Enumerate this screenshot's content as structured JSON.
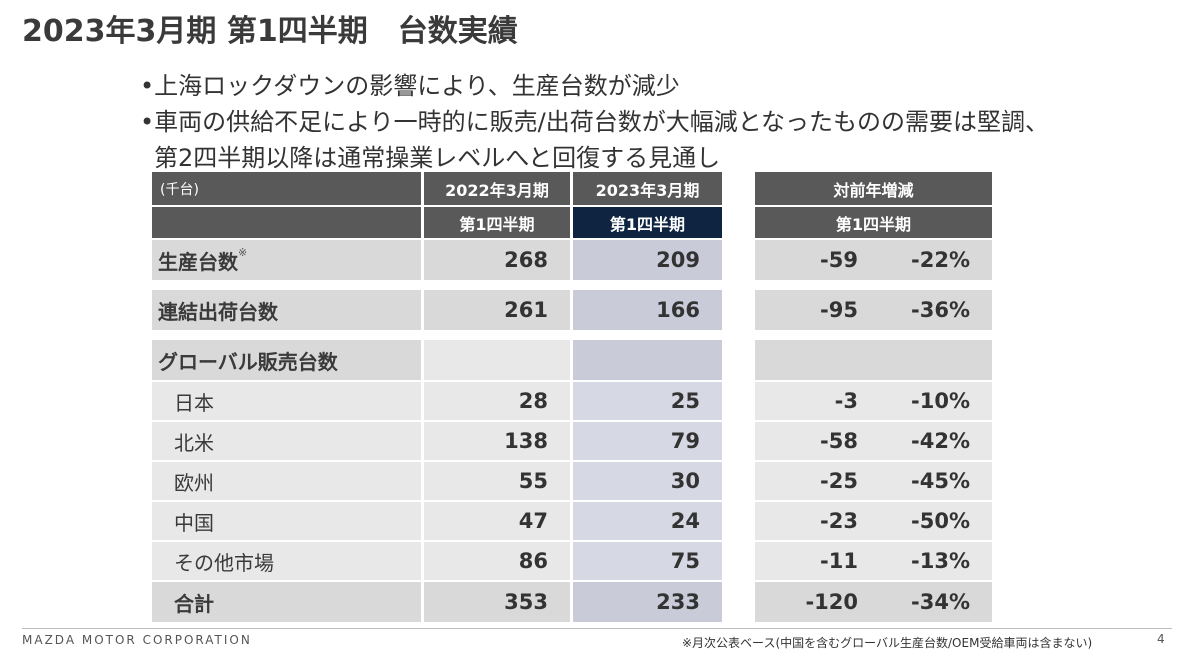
{
  "title_a": "2023年3月期 第1四半期",
  "title_b": "台数実績",
  "bullets": [
    "•上海ロックダウンの影響により、生産台数が減少",
    "•車両の供給不足により一時的に販売/出荷台数が大幅減となったものの需要は堅調、",
    "第2四半期以降は通常操業レベルへと回復する見通し"
  ],
  "table": {
    "unit": "(千台)",
    "col_prev": "2022年3月期",
    "col_curr": "2023年3月期",
    "col_diff": "対前年増減",
    "sub_q1": "第1四半期",
    "rows": [
      {
        "label": "生産台数",
        "mark": "※",
        "prev": "268",
        "curr": "209",
        "diff": "-59",
        "pct": "-22%"
      },
      {
        "label": "連結出荷台数",
        "prev": "261",
        "curr": "166",
        "diff": "-95",
        "pct": "-36%"
      },
      {
        "label": "グローバル販売台数",
        "prev": "",
        "curr": "",
        "diff": "",
        "pct": ""
      },
      {
        "label": "日本",
        "prev": "28",
        "curr": "25",
        "diff": "-3",
        "pct": "-10%"
      },
      {
        "label": "北米",
        "prev": "138",
        "curr": "79",
        "diff": "-58",
        "pct": "-42%"
      },
      {
        "label": "欧州",
        "prev": "55",
        "curr": "30",
        "diff": "-25",
        "pct": "-45%"
      },
      {
        "label": "中国",
        "prev": "47",
        "curr": "24",
        "diff": "-23",
        "pct": "-50%"
      },
      {
        "label": "その他市場",
        "prev": "86",
        "curr": "75",
        "diff": "-11",
        "pct": "-13%"
      },
      {
        "label": "合計",
        "prev": "353",
        "curr": "233",
        "diff": "-120",
        "pct": "-34%"
      }
    ]
  },
  "footer": {
    "corp": "MAZDA MOTOR CORPORATION",
    "note": "※月次公表ベース(中国を含むグローバル生産台数/OEM受給車両は含まない)",
    "page": "4"
  }
}
